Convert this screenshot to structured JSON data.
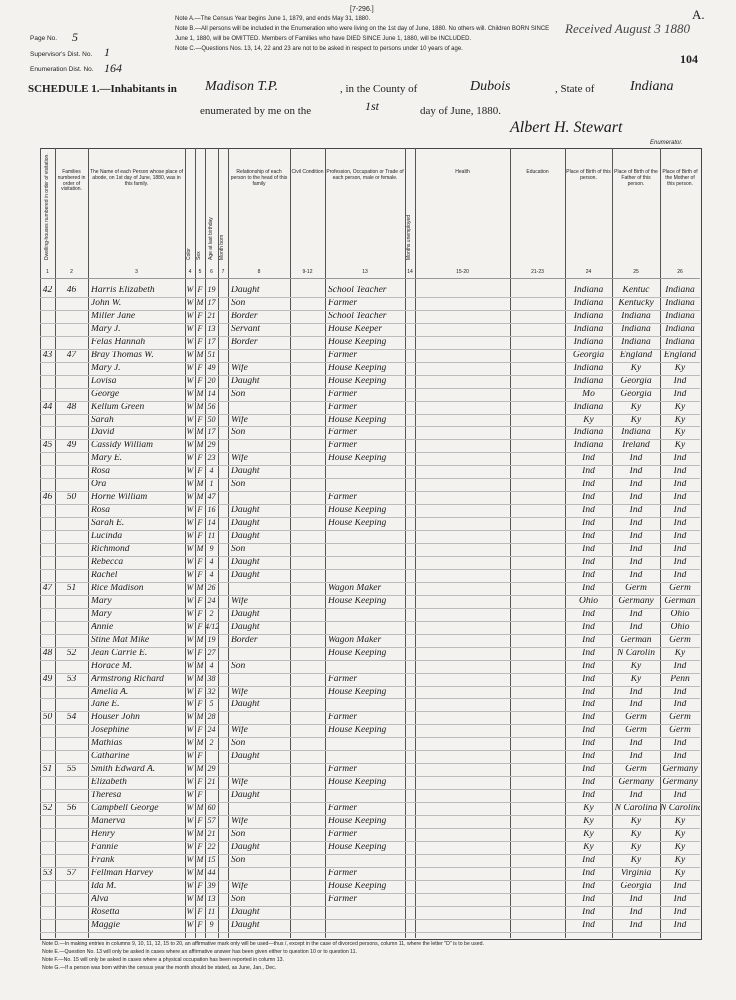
{
  "header": {
    "form": "[7-296.]",
    "received": "Received August 3 1880",
    "corner": "A.",
    "sheet": "104",
    "notes": [
      "Note A.—The Census Year begins June 1, 1879, and ends May 31, 1880.",
      "Note B.—All persons will be included in the Enumeration who were living on the 1st day of June, 1880. No others will. Children BORN SINCE",
      "June 1, 1880, will be OMITTED. Members of Families who have DIED SINCE June 1, 1880, will be INCLUDED.",
      "Note C.—Questions Nos. 13, 14, 22 and 23 are not to be asked in respect to persons under 10 years of age."
    ],
    "page_label": "Page No.",
    "page": "5",
    "supervisor_label": "Supervisor's Dist. No.",
    "supervisor": "1",
    "enumeration_label": "Enumeration Dist. No.",
    "enumeration": "164",
    "schedule": "SCHEDULE 1.—Inhabitants in",
    "place": "Madison T.P.",
    "county_label": ", in the County of",
    "county": "Dubois",
    "state_label": ", State of",
    "state": "Indiana",
    "enumerated": "enumerated by me on the",
    "day": "1st",
    "date_rest": "day of June, 1880.",
    "enumerator": "Albert H. Stewart",
    "enumerator_label": "Enumerator."
  },
  "table": {
    "columns": [
      {
        "num": "1",
        "text": "Dwelling-houses numbered in order of visitation."
      },
      {
        "num": "2",
        "text": "Families numbered in order of visitation."
      },
      {
        "num": "3",
        "text": "The Name of each Person whose place of abode, on 1st day of June, 1880, was in this family."
      },
      {
        "num": "4",
        "text": "Color"
      },
      {
        "num": "5",
        "text": "Sex"
      },
      {
        "num": "6",
        "text": "Age at last birthday"
      },
      {
        "num": "7",
        "text": "Month born"
      },
      {
        "num": "8",
        "text": "Relationship of each person to the head of this family"
      },
      {
        "num": "9-12",
        "text": "Civil Condition"
      },
      {
        "num": "13",
        "text": "Profession, Occupation or Trade of each person, male or female."
      },
      {
        "num": "14",
        "text": "Months unemployed"
      },
      {
        "num": "15-20",
        "text": "Health"
      },
      {
        "num": "21-23",
        "text": "Education"
      },
      {
        "num": "24",
        "text": "Place of Birth of this person."
      },
      {
        "num": "25",
        "text": "Place of Birth of the Father of this person."
      },
      {
        "num": "26",
        "text": "Place of Birth of the Mother of this person."
      }
    ],
    "rows": [
      {
        "dwelling": "42",
        "family": "46",
        "name": "Harris Elizabeth",
        "color": "W",
        "sex": "F",
        "age": "19",
        "relation": "Daught",
        "occupation": "School Teacher",
        "birthplace": "Indiana",
        "father": "Kentuc",
        "mother": "Indiana"
      },
      {
        "name": "John W.",
        "color": "W",
        "sex": "M",
        "age": "17",
        "relation": "Son",
        "occupation": "Farmer",
        "birthplace": "Indiana",
        "father": "Kentucky",
        "mother": "Indiana"
      },
      {
        "name": "Miller Jane",
        "color": "W",
        "sex": "F",
        "age": "21",
        "relation": "Border",
        "occupation": "School Teacher",
        "birthplace": "Indiana",
        "father": "Indiana",
        "mother": "Indiana"
      },
      {
        "name": "Mary J.",
        "color": "W",
        "sex": "F",
        "age": "13",
        "relation": "Servant",
        "occupation": "House Keeper",
        "birthplace": "Indiana",
        "father": "Indiana",
        "mother": "Indiana"
      },
      {
        "name": "Felas Hannah",
        "color": "W",
        "sex": "F",
        "age": "17",
        "relation": "Border",
        "occupation": "House Keeping",
        "birthplace": "Indiana",
        "father": "Indiana",
        "mother": "Indiana"
      },
      {
        "dwelling": "43",
        "family": "47",
        "name": "Bray Thomas W.",
        "color": "W",
        "sex": "M",
        "age": "51",
        "occupation": "Farmer",
        "birthplace": "Georgia",
        "father": "England",
        "mother": "England"
      },
      {
        "name": "Mary J.",
        "color": "W",
        "sex": "F",
        "age": "49",
        "relation": "Wife",
        "occupation": "House Keeping",
        "birthplace": "Indiana",
        "father": "Ky",
        "mother": "Ky"
      },
      {
        "name": "Lovisa",
        "color": "W",
        "sex": "F",
        "age": "20",
        "relation": "Daught",
        "occupation": "House Keeping",
        "birthplace": "Indiana",
        "father": "Georgia",
        "mother": "Ind"
      },
      {
        "name": "George",
        "color": "W",
        "sex": "M",
        "age": "14",
        "relation": "Son",
        "occupation": "Farmer",
        "birthplace": "Mo",
        "father": "Georgia",
        "mother": "Ind"
      },
      {
        "dwelling": "44",
        "family": "48",
        "name": "Kellum Green",
        "color": "W",
        "sex": "M",
        "age": "56",
        "occupation": "Farmer",
        "birthplace": "Indiana",
        "father": "Ky",
        "mother": "Ky"
      },
      {
        "name": "Sarah",
        "color": "W",
        "sex": "F",
        "age": "50",
        "relation": "Wife",
        "occupation": "House Keeping",
        "birthplace": "Ky",
        "father": "Ky",
        "mother": "Ky"
      },
      {
        "name": "David",
        "color": "W",
        "sex": "M",
        "age": "17",
        "relation": "Son",
        "occupation": "Farmer",
        "birthplace": "Indiana",
        "father": "Indiana",
        "mother": "Ky"
      },
      {
        "dwelling": "45",
        "family": "49",
        "name": "Cassidy William",
        "color": "W",
        "sex": "M",
        "age": "29",
        "occupation": "Farmer",
        "birthplace": "Indiana",
        "father": "Ireland",
        "mother": "Ky"
      },
      {
        "name": "Mary E.",
        "color": "W",
        "sex": "F",
        "age": "23",
        "relation": "Wife",
        "occupation": "House Keeping",
        "birthplace": "Ind",
        "father": "Ind",
        "mother": "Ind"
      },
      {
        "name": "Rosa",
        "color": "W",
        "sex": "F",
        "age": "4",
        "relation": "Daught",
        "birthplace": "Ind",
        "father": "Ind",
        "mother": "Ind"
      },
      {
        "name": "Ora",
        "color": "W",
        "sex": "M",
        "age": "1",
        "relation": "Son",
        "birthplace": "Ind",
        "father": "Ind",
        "mother": "Ind"
      },
      {
        "dwelling": "46",
        "family": "50",
        "name": "Horne William",
        "color": "W",
        "sex": "M",
        "age": "47",
        "occupation": "Farmer",
        "birthplace": "Ind",
        "father": "Ind",
        "mother": "Ind"
      },
      {
        "name": "Rosa",
        "color": "W",
        "sex": "F",
        "age": "16",
        "relation": "Daught",
        "occupation": "House Keeping",
        "birthplace": "Ind",
        "father": "Ind",
        "mother": "Ind"
      },
      {
        "name": "Sarah E.",
        "color": "W",
        "sex": "F",
        "age": "14",
        "relation": "Daught",
        "occupation": "House Keeping",
        "birthplace": "Ind",
        "father": "Ind",
        "mother": "Ind"
      },
      {
        "name": "Lucinda",
        "color": "W",
        "sex": "F",
        "age": "11",
        "relation": "Daught",
        "birthplace": "Ind",
        "father": "Ind",
        "mother": "Ind"
      },
      {
        "name": "Richmond",
        "color": "W",
        "sex": "M",
        "age": "9",
        "relation": "Son",
        "birthplace": "Ind",
        "father": "Ind",
        "mother": "Ind"
      },
      {
        "name": "Rebecca",
        "color": "W",
        "sex": "F",
        "age": "4",
        "relation": "Daught",
        "birthplace": "Ind",
        "father": "Ind",
        "mother": "Ind"
      },
      {
        "name": "Rachel",
        "color": "W",
        "sex": "F",
        "age": "4",
        "relation": "Daught",
        "birthplace": "Ind",
        "father": "Ind",
        "mother": "Ind"
      },
      {
        "dwelling": "47",
        "family": "51",
        "name": "Rice Madison",
        "color": "W",
        "sex": "M",
        "age": "26",
        "occupation": "Wagon Maker",
        "birthplace": "Ind",
        "father": "Germ",
        "mother": "Germ"
      },
      {
        "name": "Mary",
        "color": "W",
        "sex": "F",
        "age": "24",
        "relation": "Wife",
        "occupation": "House Keeping",
        "birthplace": "Ohio",
        "father": "Germany",
        "mother": "German"
      },
      {
        "name": "Mary",
        "color": "W",
        "sex": "F",
        "age": "2",
        "relation": "Daught",
        "birthplace": "Ind",
        "father": "Ind",
        "mother": "Ohio"
      },
      {
        "name": "Annie",
        "color": "W",
        "sex": "F",
        "age": "4/12",
        "relation": "Daught",
        "birthplace": "Ind",
        "father": "Ind",
        "mother": "Ohio"
      },
      {
        "name": "Stine Mat Mike",
        "color": "W",
        "sex": "M",
        "age": "19",
        "relation": "Border",
        "occupation": "Wagon Maker",
        "birthplace": "Ind",
        "father": "German",
        "mother": "Germ"
      },
      {
        "dwelling": "48",
        "family": "52",
        "name": "Jean Carrie E.",
        "color": "W",
        "sex": "F",
        "age": "27",
        "occupation": "House Keeping",
        "birthplace": "Ind",
        "father": "N Carolin",
        "mother": "Ky"
      },
      {
        "name": "Horace M.",
        "color": "W",
        "sex": "M",
        "age": "4",
        "relation": "Son",
        "birthplace": "Ind",
        "father": "Ky",
        "mother": "Ind"
      },
      {
        "dwelling": "49",
        "family": "53",
        "name": "Armstrong Richard",
        "color": "W",
        "sex": "M",
        "age": "38",
        "occupation": "Farmer",
        "birthplace": "Ind",
        "father": "Ky",
        "mother": "Penn"
      },
      {
        "name": "Amelia A.",
        "color": "W",
        "sex": "F",
        "age": "32",
        "relation": "Wife",
        "occupation": "House Keeping",
        "birthplace": "Ind",
        "father": "Ind",
        "mother": "Ind"
      },
      {
        "name": "Jane E.",
        "color": "W",
        "sex": "F",
        "age": "5",
        "relation": "Daught",
        "birthplace": "Ind",
        "father": "Ind",
        "mother": "Ind"
      },
      {
        "dwelling": "50",
        "family": "54",
        "name": "Houser John",
        "color": "W",
        "sex": "M",
        "age": "28",
        "occupation": "Farmer",
        "birthplace": "Ind",
        "father": "Germ",
        "mother": "Germ"
      },
      {
        "name": "Josephine",
        "color": "W",
        "sex": "F",
        "age": "24",
        "relation": "Wife",
        "occupation": "House Keeping",
        "birthplace": "Ind",
        "father": "Germ",
        "mother": "Germ"
      },
      {
        "name": "Mathias",
        "color": "W",
        "sex": "M",
        "age": "2",
        "relation": "Son",
        "birthplace": "Ind",
        "father": "Ind",
        "mother": "Ind"
      },
      {
        "name": "Catharine",
        "color": "W",
        "sex": "F",
        "relation": "Daught",
        "birthplace": "Ind",
        "father": "Ind",
        "mother": "Ind"
      },
      {
        "dwelling": "51",
        "family": "55",
        "name": "Smith Edward A.",
        "color": "W",
        "sex": "M",
        "age": "29",
        "occupation": "Farmer",
        "birthplace": "Ind",
        "father": "Germ",
        "mother": "Germany"
      },
      {
        "name": "Elizabeth",
        "color": "W",
        "sex": "F",
        "age": "21",
        "relation": "Wife",
        "occupation": "House Keeping",
        "birthplace": "Ind",
        "father": "Germany",
        "mother": "Germany"
      },
      {
        "name": "Theresa",
        "color": "W",
        "sex": "F",
        "relation": "Daught",
        "birthplace": "Ind",
        "father": "Ind",
        "mother": "Ind"
      },
      {
        "dwelling": "52",
        "family": "56",
        "name": "Campbell George",
        "color": "W",
        "sex": "M",
        "age": "60",
        "occupation": "Farmer",
        "birthplace": "Ky",
        "father": "N Carolina",
        "mother": "N Carolina"
      },
      {
        "name": "Manerva",
        "color": "W",
        "sex": "F",
        "age": "57",
        "relation": "Wife",
        "occupation": "House Keeping",
        "birthplace": "Ky",
        "father": "Ky",
        "mother": "Ky"
      },
      {
        "name": "Henry",
        "color": "W",
        "sex": "M",
        "age": "21",
        "relation": "Son",
        "occupation": "Farmer",
        "birthplace": "Ky",
        "father": "Ky",
        "mother": "Ky"
      },
      {
        "name": "Fannie",
        "color": "W",
        "sex": "F",
        "age": "22",
        "relation": "Daught",
        "occupation": "House Keeping",
        "birthplace": "Ky",
        "father": "Ky",
        "mother": "Ky"
      },
      {
        "name": "Frank",
        "color": "W",
        "sex": "M",
        "age": "15",
        "relation": "Son",
        "birthplace": "Ind",
        "father": "Ky",
        "mother": "Ky"
      },
      {
        "dwelling": "53",
        "family": "57",
        "name": "Fellman Harvey",
        "color": "W",
        "sex": "M",
        "age": "44",
        "occupation": "Farmer",
        "birthplace": "Ind",
        "father": "Virginia",
        "mother": "Ky"
      },
      {
        "name": "Ida M.",
        "color": "W",
        "sex": "F",
        "age": "39",
        "relation": "Wife",
        "occupation": "House Keeping",
        "birthplace": "Ind",
        "father": "Georgia",
        "mother": "Ind"
      },
      {
        "name": "Alva",
        "color": "W",
        "sex": "M",
        "age": "13",
        "relation": "Son",
        "occupation": "Farmer",
        "birthplace": "Ind",
        "father": "Ind",
        "mother": "Ind"
      },
      {
        "name": "Rosetta",
        "color": "W",
        "sex": "F",
        "age": "11",
        "relation": "Daught",
        "birthplace": "Ind",
        "father": "Ind",
        "mother": "Ind"
      },
      {
        "name": "Maggie",
        "color": "W",
        "sex": "F",
        "age": "9",
        "relation": "Daught",
        "birthplace": "Ind",
        "father": "Ind",
        "mother": "Ind"
      }
    ]
  },
  "footer": {
    "notes": [
      "Note D.—In making entries in columns 9, 10, 11, 12, 15 to 20, an affirmative mark only will be used—thus /, except in the case of divorced persons, column 11, where the letter \"D\" is to be used.",
      "Note E.—Question No. 13 will only be asked in cases where an affirmative answer has been given either to question 10 or to question 11.",
      "Note F.—No. 15 will only be asked in cases where a physical occupation has been reported in column 13.",
      "Note G.—If a person was born within the census year the month should be stated, as June, Jan., Dec."
    ]
  }
}
